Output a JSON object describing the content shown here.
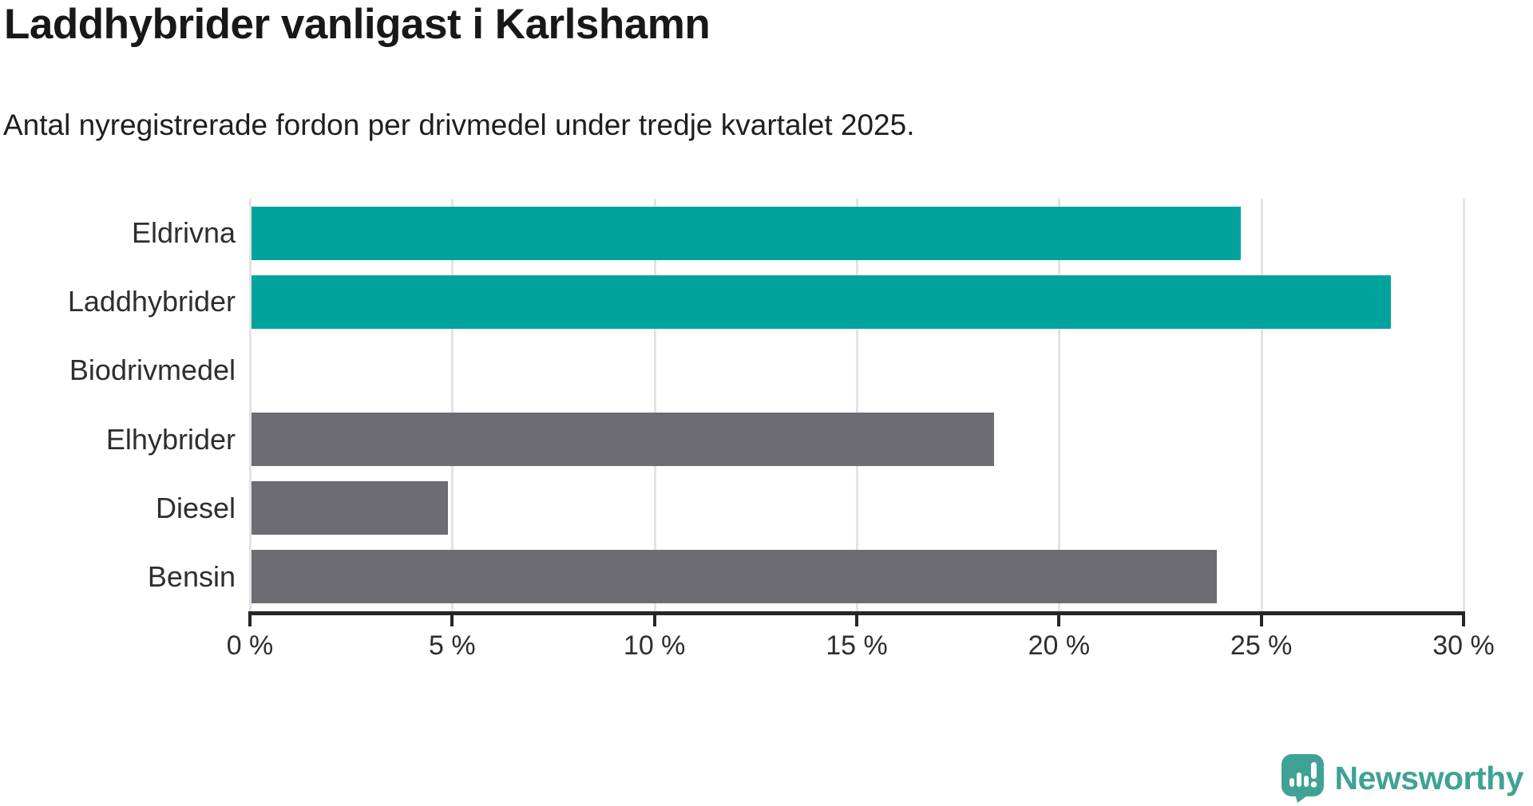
{
  "title": "Laddhybrider vanligast i Karlshamn",
  "subtitle": "Antal nyregistrerade fordon per drivmedel under tredje kvartalet 2025.",
  "colors": {
    "highlight_bar": "#00A39B",
    "default_bar": "#6C6C72",
    "axis": "#262626",
    "gridline": "#E3E3E3",
    "logo_teal": "#3FA294"
  },
  "chart_data": {
    "type": "bar",
    "orientation": "horizontal",
    "title": "Laddhybrider vanligast i Karlshamn",
    "subtitle": "Antal nyregistrerade fordon per drivmedel under tredje kvartalet 2025.",
    "categories": [
      "Eldrivna",
      "Laddhybrider",
      "Biodrivmedel",
      "Elhybrider",
      "Diesel",
      "Bensin"
    ],
    "values": [
      24.5,
      28.2,
      0,
      18.4,
      4.9,
      23.9
    ],
    "bar_color_roles": [
      "highlight",
      "highlight",
      "default",
      "default",
      "default",
      "default"
    ],
    "unit": "%",
    "xlim": [
      0,
      30
    ],
    "x_ticks": [
      0,
      5,
      10,
      15,
      20,
      25,
      30
    ],
    "x_tick_labels": [
      "0 %",
      "5 %",
      "10 %",
      "15 %",
      "20 %",
      "25 %",
      "30 %"
    ],
    "grid": true,
    "legend": false
  },
  "footer": {
    "brand": "Newsworthy"
  }
}
